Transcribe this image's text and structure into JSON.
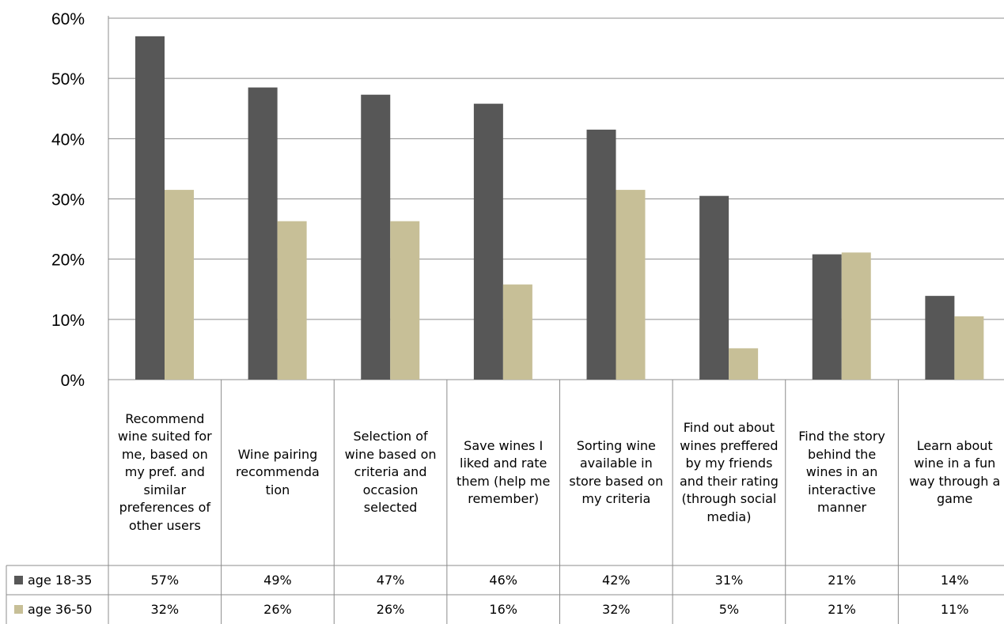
{
  "chart_data": {
    "type": "bar",
    "title": "",
    "xlabel": "",
    "ylabel": "",
    "ylim": [
      0,
      60
    ],
    "y_ticks": [
      "0%",
      "10%",
      "20%",
      "30%",
      "40%",
      "50%",
      "60%"
    ],
    "grid": "horizontal",
    "legend_placement": "data-table-left",
    "categories": [
      "Recommend wine suited for me, based on my pref. and similar preferences of other users",
      "Wine pairing recommenda tion",
      "Selection of wine based on criteria and occasion selected",
      "Save wines I liked and rate them (help me remember)",
      "Sorting wine available in store based on my criteria",
      "Find out about wines preffered by my friends and their rating (through social media)",
      "Find the story behind the wines in an interactive manner",
      "Learn about wine in a fun way through a game"
    ],
    "series": [
      {
        "name": "age 18-35",
        "color": "#575757",
        "values": [
          57,
          48.5,
          47.3,
          45.8,
          41.5,
          30.5,
          20.8,
          13.9
        ],
        "table_labels": [
          "57%",
          "49%",
          "47%",
          "46%",
          "42%",
          "31%",
          "21%",
          "14%"
        ]
      },
      {
        "name": "age 36-50",
        "color": "#c7bf97",
        "values": [
          31.5,
          26.3,
          26.3,
          15.8,
          31.5,
          5.2,
          21.1,
          10.5
        ],
        "table_labels": [
          "32%",
          "26%",
          "26%",
          "16%",
          "32%",
          "5%",
          "21%",
          "11%"
        ]
      }
    ]
  }
}
